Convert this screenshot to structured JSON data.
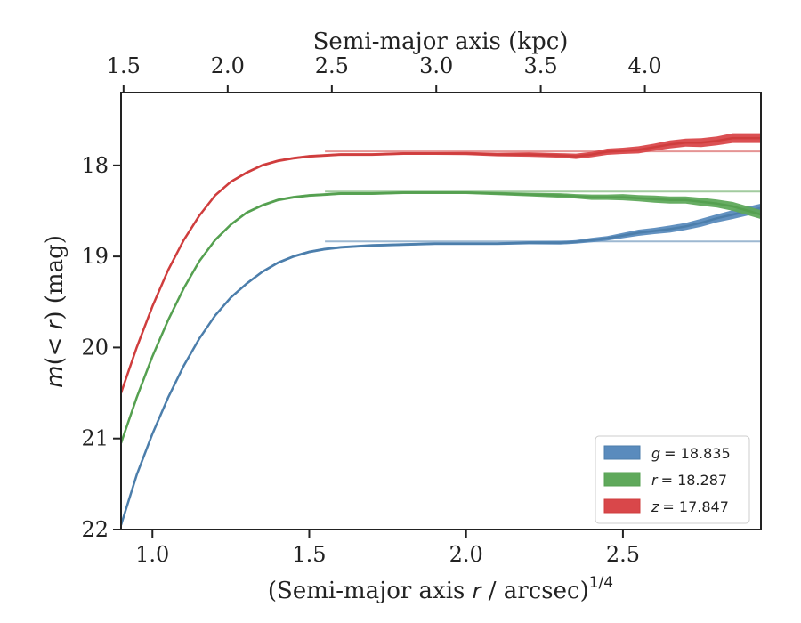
{
  "chart_data": {
    "type": "line",
    "xlabel_prefix": "(Semi-major axis ",
    "xlabel_var": "r",
    "xlabel_suffix": " / arcsec)",
    "xlabel_sup": "1/4",
    "x2label": "Semi-major axis (kpc)",
    "ylabel_prefix": "m",
    "ylabel_mid": "(< ",
    "ylabel_var": "r",
    "ylabel_suffix": ") (mag)",
    "xlim": [
      0.9,
      2.94
    ],
    "ylim": [
      22.0,
      17.2
    ],
    "xticks": [
      1.0,
      1.5,
      2.0,
      2.5
    ],
    "xtick_labels": [
      "1.0",
      "1.5",
      "2.0",
      "2.5"
    ],
    "yticks": [
      18,
      19,
      20,
      21,
      22
    ],
    "ytick_labels": [
      "18",
      "19",
      "20",
      "21",
      "22"
    ],
    "x2_ticks_at_x": [
      0.908,
      1.24,
      1.572,
      1.905,
      2.238,
      2.57
    ],
    "x2tick_labels": [
      "1.5",
      "2.0",
      "2.5",
      "3.0",
      "3.5",
      "4.0"
    ],
    "grid": false,
    "legend_position": "lower-right",
    "series": [
      {
        "band": "g",
        "legend_label": "= 18.835",
        "asymptote": 18.835,
        "color": "#4c7eab",
        "fill_color": "#5a8bbd",
        "x": [
          0.9,
          0.95,
          1.0,
          1.05,
          1.1,
          1.15,
          1.2,
          1.25,
          1.3,
          1.35,
          1.4,
          1.45,
          1.5,
          1.55,
          1.6,
          1.7,
          1.8,
          1.9,
          2.0,
          2.1,
          2.2,
          2.3,
          2.35,
          2.4,
          2.45,
          2.5,
          2.55,
          2.6,
          2.65,
          2.7,
          2.75,
          2.8,
          2.85,
          2.9,
          2.94
        ],
        "y": [
          21.95,
          21.4,
          20.95,
          20.55,
          20.2,
          19.9,
          19.65,
          19.45,
          19.3,
          19.17,
          19.07,
          19.0,
          18.95,
          18.92,
          18.9,
          18.88,
          18.87,
          18.86,
          18.86,
          18.86,
          18.85,
          18.85,
          18.84,
          18.82,
          18.8,
          18.77,
          18.74,
          18.72,
          18.7,
          18.67,
          18.63,
          18.58,
          18.54,
          18.5,
          18.47
        ],
        "width": [
          3,
          3,
          3,
          3,
          3,
          3,
          3,
          3,
          3,
          3,
          3,
          3,
          3,
          3,
          3,
          3,
          3,
          3,
          3,
          3,
          3.5,
          4,
          4,
          5,
          5,
          6,
          7,
          7,
          8,
          8,
          9,
          9,
          10,
          10,
          10
        ]
      },
      {
        "band": "r",
        "legend_label": "= 18.287",
        "asymptote": 18.287,
        "color": "#55a050",
        "fill_color": "#5fa95b",
        "x": [
          0.9,
          0.95,
          1.0,
          1.05,
          1.1,
          1.15,
          1.2,
          1.25,
          1.3,
          1.35,
          1.4,
          1.45,
          1.5,
          1.55,
          1.6,
          1.7,
          1.8,
          1.9,
          2.0,
          2.1,
          2.2,
          2.3,
          2.35,
          2.4,
          2.45,
          2.5,
          2.55,
          2.6,
          2.65,
          2.7,
          2.75,
          2.8,
          2.85,
          2.9,
          2.94
        ],
        "y": [
          21.05,
          20.55,
          20.1,
          19.7,
          19.35,
          19.05,
          18.82,
          18.65,
          18.52,
          18.44,
          18.38,
          18.35,
          18.33,
          18.32,
          18.31,
          18.31,
          18.3,
          18.3,
          18.3,
          18.31,
          18.32,
          18.33,
          18.34,
          18.35,
          18.35,
          18.35,
          18.36,
          18.37,
          18.38,
          18.38,
          18.4,
          18.42,
          18.45,
          18.5,
          18.54
        ],
        "width": [
          3,
          3,
          3,
          3,
          3,
          3,
          3,
          3,
          3,
          3,
          3,
          3,
          3,
          3,
          3,
          3,
          3,
          3,
          3,
          3.5,
          4,
          5,
          5,
          6,
          6,
          7,
          7,
          8,
          8,
          8,
          9,
          9,
          10,
          10,
          10
        ]
      },
      {
        "band": "z",
        "legend_label": "= 17.847",
        "asymptote": 17.847,
        "color": "#cf3d3d",
        "fill_color": "#d9474a",
        "x": [
          0.9,
          0.95,
          1.0,
          1.05,
          1.1,
          1.15,
          1.2,
          1.25,
          1.3,
          1.35,
          1.4,
          1.45,
          1.5,
          1.55,
          1.6,
          1.7,
          1.8,
          1.9,
          2.0,
          2.1,
          2.2,
          2.3,
          2.35,
          2.4,
          2.45,
          2.5,
          2.55,
          2.6,
          2.65,
          2.7,
          2.75,
          2.8,
          2.85,
          2.9,
          2.94
        ],
        "y": [
          20.5,
          20.0,
          19.55,
          19.15,
          18.82,
          18.55,
          18.33,
          18.18,
          18.08,
          18.0,
          17.95,
          17.92,
          17.9,
          17.89,
          17.88,
          17.88,
          17.87,
          17.87,
          17.87,
          17.88,
          17.88,
          17.89,
          17.9,
          17.88,
          17.85,
          17.84,
          17.83,
          17.8,
          17.77,
          17.75,
          17.75,
          17.73,
          17.7,
          17.7,
          17.7
        ],
        "width": [
          3,
          3,
          3,
          3,
          3,
          3,
          3,
          3,
          3,
          3,
          3,
          3,
          3,
          3,
          3,
          3,
          3,
          3,
          3.5,
          4,
          5,
          5,
          6,
          6,
          7,
          7,
          8,
          8,
          9,
          9,
          10,
          10,
          11,
          11,
          11
        ]
      }
    ]
  }
}
